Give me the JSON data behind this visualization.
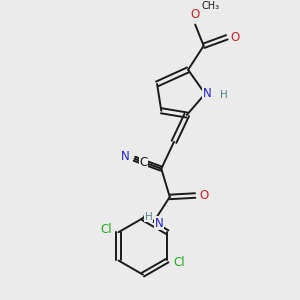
{
  "bg_color": "#ebebeb",
  "bond_color": "#1a1a1a",
  "n_color": "#2222cc",
  "o_color": "#cc2222",
  "cl_color": "#22aa22",
  "h_color": "#558888",
  "c_color": "#1a1a1a",
  "figsize": [
    3.0,
    3.0
  ],
  "dpi": 100,
  "xlim": [
    0,
    10
  ],
  "ylim": [
    0,
    10
  ]
}
